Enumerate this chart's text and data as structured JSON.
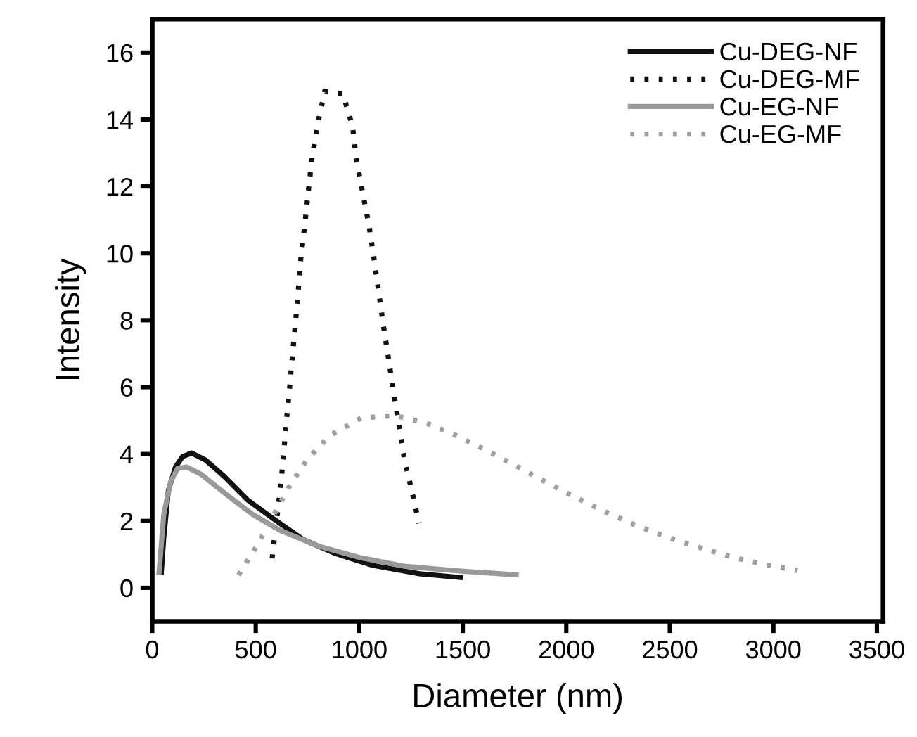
{
  "chart_data": {
    "type": "line",
    "xlabel": "Diameter (nm)",
    "ylabel": "Intensity",
    "xlim": [
      0,
      3530
    ],
    "ylim": [
      -1,
      17
    ],
    "xticks": [
      0,
      500,
      1000,
      1500,
      2000,
      2500,
      3000,
      3500
    ],
    "yticks": [
      0,
      2,
      4,
      6,
      8,
      10,
      12,
      14,
      16
    ],
    "grid": false,
    "legend": "top right",
    "series": [
      {
        "name": "Cu-DEG-NF",
        "color": "#111111",
        "line_style": "solid",
        "x": [
          44,
          56,
          78,
          112,
          146,
          191,
          258,
          348,
          460,
          584,
          730,
          887,
          1066,
          1291,
          1489
        ],
        "values": [
          0.46,
          1.51,
          2.91,
          3.61,
          3.92,
          4.03,
          3.82,
          3.33,
          2.63,
          2.07,
          1.44,
          1.02,
          0.67,
          0.42,
          0.31
        ]
      },
      {
        "name": "Cu-DEG-MF",
        "color": "#111111",
        "line_style": "dotted",
        "x": [
          579,
          617,
          633,
          646,
          662,
          676,
          691,
          705,
          718,
          737,
          754,
          772,
          799,
          833,
          920,
          967,
          986,
          1016,
          1047,
          1071,
          1094,
          1116,
          1141,
          1165,
          1192,
          1217,
          1253,
          1289
        ],
        "values": [
          0.88,
          2.87,
          3.86,
          4.87,
          5.87,
          6.86,
          7.87,
          8.86,
          9.87,
          10.87,
          11.86,
          12.85,
          13.85,
          14.84,
          14.77,
          13.81,
          12.81,
          11.83,
          10.84,
          9.84,
          8.84,
          7.86,
          6.86,
          5.87,
          4.87,
          3.88,
          2.91,
          1.93
        ]
      },
      {
        "name": "Cu-EG-NF",
        "color": "#999999",
        "line_style": "solid",
        "x": [
          33,
          56,
          90,
          123,
          168,
          235,
          348,
          482,
          617,
          797,
          999,
          1224,
          1493,
          1758
        ],
        "values": [
          0.46,
          2.21,
          3.19,
          3.57,
          3.61,
          3.4,
          2.84,
          2.21,
          1.72,
          1.26,
          0.91,
          0.64,
          0.5,
          0.39
        ]
      },
      {
        "name": "Cu-EG-MF",
        "color": "#a0a0a0",
        "line_style": "dotted",
        "x": [
          417,
          507,
          660,
          745,
          855,
          1010,
          1172,
          1327,
          1473,
          1617,
          1759,
          1902,
          2046,
          2189,
          2340,
          2491,
          2646,
          2801,
          2957,
          3117
        ],
        "values": [
          0.38,
          1.27,
          3.01,
          3.81,
          4.54,
          5.08,
          5.15,
          4.92,
          4.54,
          4.1,
          3.64,
          3.16,
          2.7,
          2.27,
          1.86,
          1.51,
          1.2,
          0.92,
          0.7,
          0.52
        ]
      }
    ]
  }
}
